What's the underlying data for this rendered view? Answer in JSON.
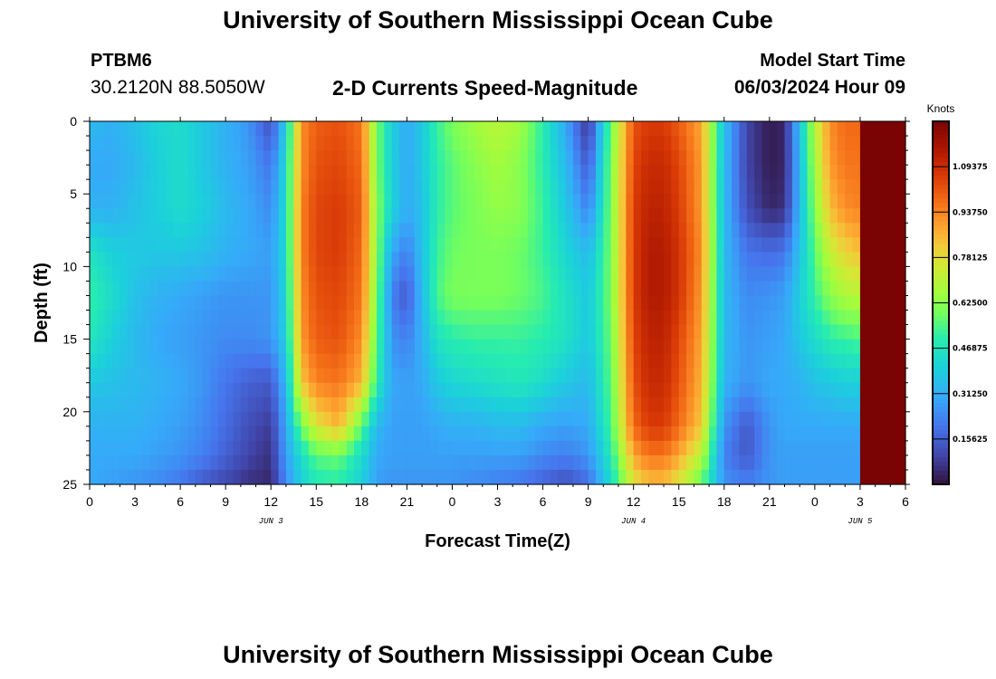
{
  "header": {
    "title": "University of Southern Mississippi Ocean Cube",
    "station_id": "PTBM6",
    "coordinates": "30.2120N  88.5050W",
    "variable": "2-D Currents Speed-Magnitude",
    "model_start_label": "Model Start Time",
    "model_start_value": "06/03/2024 Hour 09"
  },
  "footer": {
    "title": "University of Southern Mississippi Ocean Cube"
  },
  "chart_data": {
    "type": "heatmap",
    "title": "2-D Currents Speed-Magnitude",
    "xlabel": "Forecast Time(Z)",
    "ylabel": "Depth (ft)",
    "x_range_hours": [
      0,
      54
    ],
    "y_range_ft": [
      0,
      25
    ],
    "y_inverted": true,
    "x_ticks": [
      "0",
      "3",
      "6",
      "9",
      "12",
      "15",
      "18",
      "21",
      "0",
      "3",
      "6",
      "9",
      "12",
      "15",
      "18",
      "21",
      "0",
      "3",
      "6"
    ],
    "y_ticks": [
      "0",
      "5",
      "10",
      "15",
      "20",
      "25"
    ],
    "date_labels": [
      {
        "text": "JUN 3",
        "hour": 12
      },
      {
        "text": "JUN 4",
        "hour": 36
      },
      {
        "text": "JUN 5",
        "hour": 51
      }
    ],
    "colorbar": {
      "units": "Knots",
      "min": 0,
      "max": 1.25,
      "ticks": [
        "0.15625",
        "0.31250",
        "0.46875",
        "0.62500",
        "0.78125",
        "0.93750",
        "1.09375"
      ],
      "tick_values": [
        0.15625,
        0.3125,
        0.46875,
        0.625,
        0.78125,
        0.9375,
        1.09375
      ]
    },
    "speed_field": {
      "hours": [
        0,
        1.5,
        3,
        4.5,
        6,
        7.5,
        9,
        10.5,
        12,
        13,
        14,
        15,
        16.5,
        18,
        19,
        20,
        21,
        22,
        23,
        24,
        25.5,
        27,
        28.5,
        30,
        31.5,
        33,
        34.5,
        36,
        37,
        38,
        39,
        40.5,
        42,
        43.5,
        45,
        46,
        47,
        48,
        49,
        50,
        51,
        52.5,
        54
      ],
      "depths": [
        0,
        3,
        6,
        9,
        12,
        15,
        18,
        21,
        23,
        25
      ],
      "knots": [
        [
          0.34,
          0.32,
          0.36,
          0.42,
          0.44,
          0.38,
          0.32,
          0.26,
          0.12,
          0.4,
          0.92,
          1.0,
          1.02,
          0.96,
          0.6,
          0.4,
          0.3,
          0.38,
          0.52,
          0.6,
          0.66,
          0.7,
          0.66,
          0.5,
          0.3,
          0.06,
          0.58,
          1.02,
          1.06,
          1.06,
          1.0,
          0.88,
          0.36,
          0.1,
          0.02,
          0.04,
          0.36,
          0.7,
          0.92,
          0.98,
          0.98
        ],
        [
          0.3,
          0.3,
          0.34,
          0.4,
          0.44,
          0.38,
          0.32,
          0.28,
          0.2,
          0.44,
          0.92,
          1.02,
          1.04,
          0.98,
          0.6,
          0.4,
          0.3,
          0.38,
          0.5,
          0.56,
          0.62,
          0.66,
          0.62,
          0.5,
          0.34,
          0.14,
          0.6,
          1.04,
          1.1,
          1.1,
          1.04,
          0.9,
          0.34,
          0.1,
          0.02,
          0.04,
          0.34,
          0.66,
          0.9,
          0.96,
          0.96
        ],
        [
          0.32,
          0.32,
          0.36,
          0.4,
          0.44,
          0.4,
          0.34,
          0.3,
          0.24,
          0.44,
          0.94,
          1.04,
          1.06,
          1.0,
          0.62,
          0.42,
          0.3,
          0.36,
          0.5,
          0.56,
          0.6,
          0.64,
          0.62,
          0.52,
          0.38,
          0.22,
          0.6,
          1.06,
          1.12,
          1.12,
          1.06,
          0.9,
          0.34,
          0.12,
          0.04,
          0.06,
          0.34,
          0.62,
          0.84,
          0.92,
          0.94
        ],
        [
          0.46,
          0.4,
          0.38,
          0.38,
          0.38,
          0.36,
          0.32,
          0.3,
          0.28,
          0.44,
          0.94,
          1.04,
          1.06,
          0.98,
          0.62,
          0.3,
          0.22,
          0.36,
          0.52,
          0.58,
          0.6,
          0.6,
          0.58,
          0.52,
          0.42,
          0.34,
          0.6,
          1.06,
          1.14,
          1.14,
          1.08,
          0.92,
          0.34,
          0.2,
          0.18,
          0.2,
          0.36,
          0.56,
          0.72,
          0.8,
          0.84
        ],
        [
          0.52,
          0.44,
          0.36,
          0.32,
          0.3,
          0.28,
          0.26,
          0.26,
          0.26,
          0.42,
          0.92,
          1.02,
          1.04,
          0.96,
          0.6,
          0.22,
          0.14,
          0.34,
          0.54,
          0.6,
          0.6,
          0.6,
          0.58,
          0.54,
          0.46,
          0.38,
          0.6,
          1.06,
          1.14,
          1.14,
          1.08,
          0.9,
          0.34,
          0.24,
          0.26,
          0.28,
          0.4,
          0.52,
          0.62,
          0.68,
          0.7
        ],
        [
          0.48,
          0.4,
          0.34,
          0.3,
          0.28,
          0.26,
          0.24,
          0.24,
          0.26,
          0.4,
          0.9,
          1.0,
          1.02,
          0.92,
          0.56,
          0.26,
          0.22,
          0.32,
          0.46,
          0.5,
          0.52,
          0.52,
          0.52,
          0.5,
          0.46,
          0.38,
          0.58,
          1.04,
          1.12,
          1.12,
          1.04,
          0.88,
          0.34,
          0.26,
          0.28,
          0.3,
          0.38,
          0.44,
          0.5,
          0.52,
          0.54
        ],
        [
          0.38,
          0.36,
          0.34,
          0.32,
          0.3,
          0.26,
          0.2,
          0.16,
          0.14,
          0.34,
          0.82,
          0.94,
          0.96,
          0.86,
          0.5,
          0.3,
          0.28,
          0.3,
          0.38,
          0.42,
          0.44,
          0.46,
          0.48,
          0.44,
          0.38,
          0.34,
          0.56,
          1.02,
          1.1,
          1.1,
          1.02,
          0.86,
          0.32,
          0.26,
          0.3,
          0.3,
          0.32,
          0.36,
          0.38,
          0.4,
          0.4
        ],
        [
          0.32,
          0.32,
          0.32,
          0.3,
          0.28,
          0.24,
          0.18,
          0.12,
          0.08,
          0.3,
          0.58,
          0.76,
          0.86,
          0.56,
          0.34,
          0.28,
          0.28,
          0.28,
          0.3,
          0.32,
          0.32,
          0.34,
          0.34,
          0.3,
          0.28,
          0.3,
          0.54,
          0.98,
          1.06,
          1.06,
          0.98,
          0.82,
          0.26,
          0.14,
          0.26,
          0.3,
          0.3,
          0.3,
          0.3,
          0.3,
          0.3
        ],
        [
          0.3,
          0.3,
          0.3,
          0.28,
          0.26,
          0.22,
          0.16,
          0.1,
          0.06,
          0.28,
          0.44,
          0.56,
          0.58,
          0.44,
          0.3,
          0.28,
          0.28,
          0.28,
          0.28,
          0.28,
          0.28,
          0.28,
          0.28,
          0.24,
          0.22,
          0.26,
          0.48,
          0.88,
          0.96,
          0.96,
          0.88,
          0.7,
          0.22,
          0.14,
          0.26,
          0.28,
          0.28,
          0.28,
          0.28,
          0.28,
          0.28
        ],
        [
          0.3,
          0.28,
          0.26,
          0.24,
          0.2,
          0.14,
          0.1,
          0.06,
          0.04,
          0.24,
          0.4,
          0.48,
          0.5,
          0.4,
          0.28,
          0.26,
          0.26,
          0.26,
          0.26,
          0.26,
          0.24,
          0.22,
          0.2,
          0.16,
          0.12,
          0.18,
          0.44,
          0.76,
          0.84,
          0.84,
          0.76,
          0.56,
          0.26,
          0.22,
          0.26,
          0.28,
          0.28,
          0.28,
          0.28,
          0.28,
          0.28
        ]
      ]
    }
  }
}
